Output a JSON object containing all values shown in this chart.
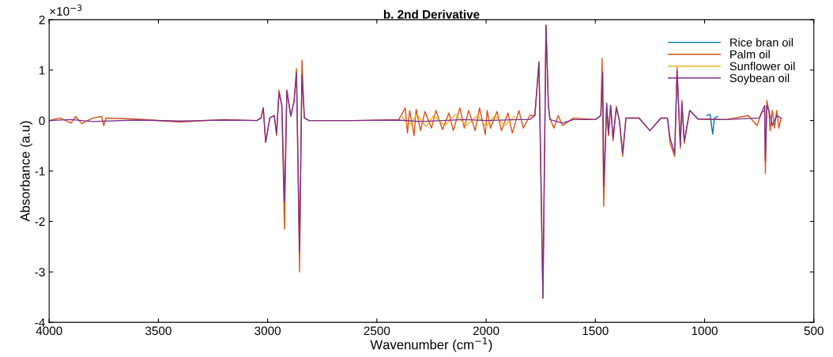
{
  "chart_data": {
    "type": "line",
    "title": "b. 2nd Derivative",
    "xlabel": "Wavenumber (cm$^{−1}$)",
    "ylabel": "Absorbance (a.u)",
    "annotations": [
      "×10$^{−3}$"
    ],
    "xlim": [
      4000,
      500
    ],
    "xticks": [
      4000,
      3500,
      3000,
      2500,
      2000,
      1500,
      1000,
      500
    ],
    "ylim": [
      -4,
      2
    ],
    "yticks": [
      -4,
      -3,
      -2,
      -1,
      0,
      1,
      2
    ],
    "grid": false,
    "legend": "top right",
    "line_style": "solid",
    "marker": "none",
    "series": [
      {
        "name": "Rice bran oil",
        "color": "#0072bd",
        "x": [
          990,
          975,
          963,
          955,
          940
        ],
        "values": [
          0.1,
          0.12,
          -0.27,
          0.05,
          0.08
        ]
      },
      {
        "name": "Palm oil",
        "color": "#d95319",
        "x": [
          4000,
          3950,
          3900,
          3880,
          3850,
          3800,
          3760,
          3750,
          3740,
          3600,
          3400,
          3200,
          3050,
          3030,
          3020,
          3009,
          2990,
          2970,
          2959,
          2948,
          2935,
          2923,
          2912,
          2894,
          2879,
          2868,
          2854,
          2843,
          2832,
          2810,
          2600,
          2400,
          2370,
          2360,
          2350,
          2330,
          2320,
          2300,
          2280,
          2250,
          2230,
          2200,
          2170,
          2150,
          2120,
          2100,
          2080,
          2050,
          2030,
          2010,
          2004,
          1995,
          1980,
          1950,
          1930,
          1900,
          1880,
          1850,
          1830,
          1800,
          1777,
          1758,
          1740,
          1726,
          1715,
          1708,
          1690,
          1670,
          1650,
          1600,
          1500,
          1475,
          1469,
          1462,
          1448,
          1440,
          1430,
          1419,
          1404,
          1390,
          1375,
          1360,
          1300,
          1250,
          1200,
          1170,
          1158,
          1137,
          1126,
          1111,
          1104,
          1093,
          1068,
          1030,
          900,
          800,
          760,
          740,
          725,
          722,
          715,
          706,
          700,
          690,
          680,
          670,
          660,
          650
        ],
        "values": [
          0,
          0.05,
          -0.05,
          0.08,
          -0.06,
          0.05,
          0.08,
          -0.1,
          0.05,
          0.03,
          -0.03,
          0.02,
          0,
          0.05,
          0.25,
          -0.43,
          0.05,
          0.1,
          -0.3,
          0.6,
          0.3,
          -2.15,
          0.6,
          0.09,
          0.38,
          1.03,
          -3.0,
          1.2,
          0.05,
          0,
          0,
          0.02,
          0.25,
          -0.25,
          0.2,
          -0.3,
          0.22,
          -0.2,
          0.18,
          -0.15,
          0.2,
          -0.18,
          0.15,
          -0.2,
          0.25,
          -0.15,
          0.2,
          -0.2,
          0.25,
          -0.15,
          -0.28,
          0.2,
          -0.15,
          0.18,
          -0.2,
          0.15,
          -0.25,
          0.2,
          -0.15,
          0.1,
          0.1,
          1.17,
          -3.52,
          1.89,
          0.3,
          0.05,
          -0.15,
          0.1,
          -0.1,
          0.05,
          0.02,
          0.1,
          1.23,
          -1.7,
          0.35,
          -0.3,
          0.3,
          -0.4,
          0.28,
          0,
          -0.71,
          0.05,
          0.05,
          -0.2,
          0.05,
          0.05,
          -0.45,
          -0.71,
          1.05,
          -0.55,
          0.4,
          -0.45,
          0.2,
          0.03,
          0.02,
          0.1,
          -0.1,
          0.15,
          0.2,
          -1.05,
          0.4,
          0.2,
          -0.2,
          0.2,
          -0.15,
          0.2,
          -0.15,
          0.05
        ]
      },
      {
        "name": "Sunflower oil",
        "color": "#edb120",
        "x": [
          2390,
          2355,
          2315,
          2275,
          2240,
          2190,
          2140,
          2090,
          2040,
          2000,
          1960,
          1915,
          1870
        ],
        "values": [
          0.1,
          -0.1,
          0.12,
          -0.12,
          0.1,
          -0.1,
          0.12,
          -0.1,
          0.1,
          -0.12,
          0.1,
          -0.1,
          0.08
        ]
      },
      {
        "name": "Soybean oil",
        "color": "#7e2f8e",
        "x": [
          4000,
          3900,
          3800,
          3600,
          3400,
          3200,
          3050,
          3030,
          3020,
          3009,
          2990,
          2970,
          2959,
          2948,
          2935,
          2923,
          2912,
          2894,
          2879,
          2868,
          2854,
          2843,
          2832,
          2810,
          2600,
          2400,
          2300,
          2100,
          2000,
          1850,
          1800,
          1777,
          1758,
          1740,
          1726,
          1715,
          1708,
          1650,
          1600,
          1500,
          1475,
          1466,
          1462,
          1448,
          1440,
          1430,
          1419,
          1404,
          1390,
          1375,
          1360,
          1300,
          1250,
          1200,
          1170,
          1158,
          1137,
          1126,
          1111,
          1104,
          1093,
          1068,
          1030,
          900,
          750,
          725,
          722,
          715,
          706,
          690,
          670,
          650
        ],
        "values": [
          0,
          0.02,
          -0.02,
          0.01,
          -0.01,
          0.01,
          0,
          0.05,
          0.25,
          -0.43,
          0.05,
          0.1,
          -0.25,
          0.55,
          0.3,
          -1.6,
          0.6,
          0.09,
          0.38,
          0.95,
          -2.6,
          0.9,
          0.05,
          0,
          0,
          0.01,
          -0.02,
          0.02,
          0,
          0.02,
          0.02,
          0.1,
          1.15,
          -3.52,
          1.89,
          0.3,
          0.02,
          -0.05,
          0.02,
          0.02,
          0.1,
          0.95,
          -1.3,
          0.32,
          -0.27,
          0.3,
          -0.35,
          0.25,
          0,
          -0.65,
          0.05,
          0.05,
          -0.2,
          0.05,
          0.05,
          -0.35,
          -0.65,
          0.98,
          -0.5,
          0.35,
          -0.4,
          0.2,
          0.03,
          0.02,
          0.05,
          0.3,
          -0.8,
          0.3,
          0.2,
          -0.1,
          0.1,
          0.05
        ]
      }
    ]
  }
}
